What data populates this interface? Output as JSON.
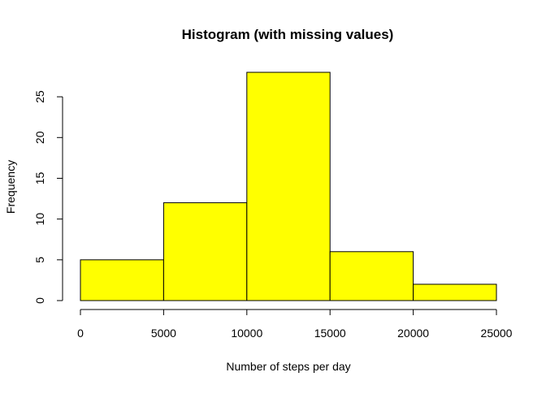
{
  "chart_data": {
    "type": "bar",
    "subtype": "histogram",
    "title": "Histogram (with missing values)",
    "xlabel": "Number of steps per day",
    "ylabel": "Frequency",
    "bins": [
      {
        "start": 0,
        "end": 5000,
        "value": 5
      },
      {
        "start": 5000,
        "end": 10000,
        "value": 12
      },
      {
        "start": 10000,
        "end": 15000,
        "value": 28
      },
      {
        "start": 15000,
        "end": 20000,
        "value": 6
      },
      {
        "start": 20000,
        "end": 25000,
        "value": 2
      }
    ],
    "xlim": [
      0,
      25000
    ],
    "ylim": [
      0,
      28
    ],
    "x_ticks": [
      0,
      5000,
      10000,
      15000,
      20000,
      25000
    ],
    "y_ticks": [
      0,
      5,
      10,
      15,
      20,
      25
    ],
    "bar_color": "#ffff00",
    "edge_color": "#000000",
    "grid": false,
    "legend": "none"
  }
}
